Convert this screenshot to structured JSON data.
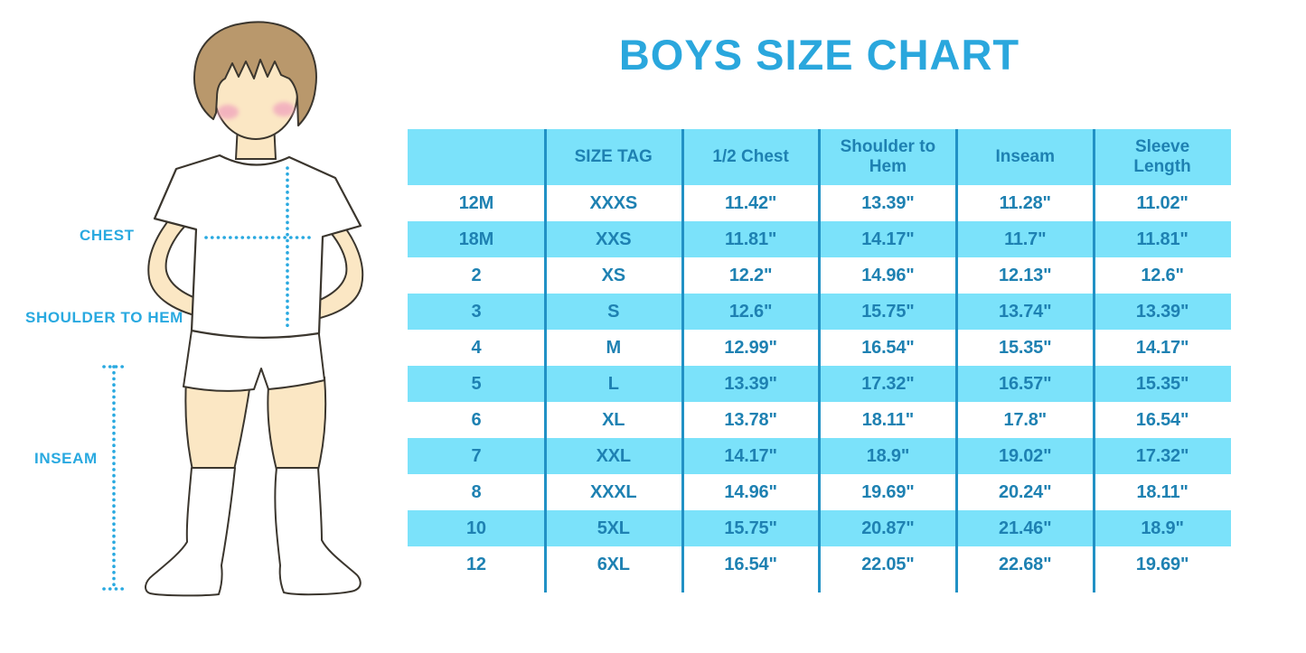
{
  "title": "BOYS SIZE CHART",
  "accent_color": "#29A9E0",
  "table_text_color": "#1E81B2",
  "band_color": "#7BE2FA",
  "divider_color": "#2191C5",
  "figure": {
    "labels": {
      "chest": "CHEST",
      "shoulder_to_hem": "SHOULDER TO HEM",
      "inseam": "INSEAM"
    }
  },
  "chart_data": {
    "type": "table",
    "title": "BOYS SIZE CHART",
    "columns": [
      "",
      "SIZE TAG",
      "1/2 Chest",
      "Shoulder to Hem",
      "Inseam",
      "Sleeve Length"
    ],
    "rows": [
      [
        "12M",
        "XXXS",
        "11.42\"",
        "13.39\"",
        "11.28\"",
        "11.02\""
      ],
      [
        "18M",
        "XXS",
        "11.81\"",
        "14.17\"",
        "11.7\"",
        "11.81\""
      ],
      [
        "2",
        "XS",
        "12.2\"",
        "14.96\"",
        "12.13\"",
        "12.6\""
      ],
      [
        "3",
        "S",
        "12.6\"",
        "15.75\"",
        "13.74\"",
        "13.39\""
      ],
      [
        "4",
        "M",
        "12.99\"",
        "16.54\"",
        "15.35\"",
        "14.17\""
      ],
      [
        "5",
        "L",
        "13.39\"",
        "17.32\"",
        "16.57\"",
        "15.35\""
      ],
      [
        "6",
        "XL",
        "13.78\"",
        "18.11\"",
        "17.8\"",
        "16.54\""
      ],
      [
        "7",
        "XXL",
        "14.17\"",
        "18.9\"",
        "19.02\"",
        "17.32\""
      ],
      [
        "8",
        "XXXL",
        "14.96\"",
        "19.69\"",
        "20.24\"",
        "18.11\""
      ],
      [
        "10",
        "5XL",
        "15.75\"",
        "20.87\"",
        "21.46\"",
        "18.9\""
      ],
      [
        "12",
        "6XL",
        "16.54\"",
        "22.05\"",
        "22.68\"",
        "19.69\""
      ]
    ],
    "layout_hints": {
      "striped_rows": true,
      "header_fill": "#7BE2FA",
      "stripe_fill": "#7BE2FA",
      "column_dividers": 5,
      "units": "inches"
    }
  }
}
